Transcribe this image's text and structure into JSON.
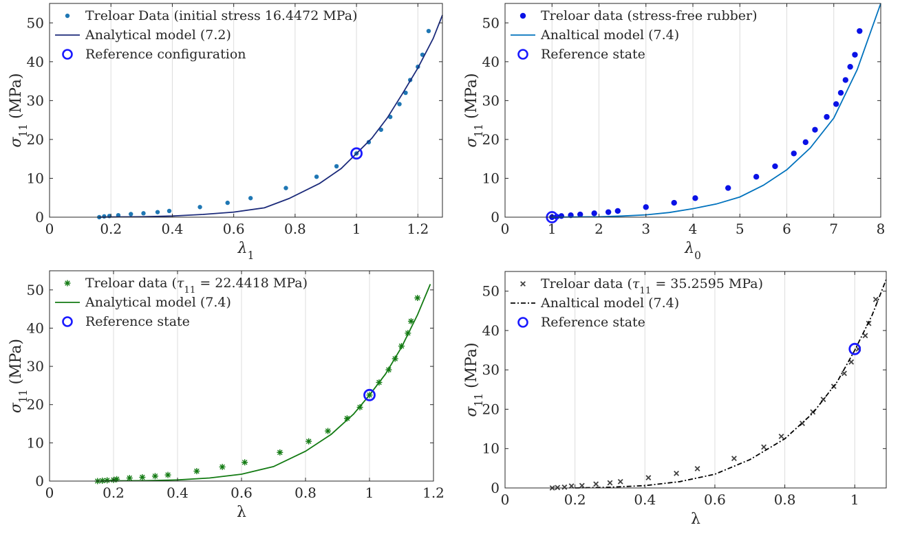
{
  "figure": {
    "colors": {
      "axis": "#262626",
      "grid": "#dcdcdc",
      "ref_circle": "#1a1aff"
    }
  },
  "chart_data": [
    {
      "type": "scatter",
      "xlabel": "λ1",
      "ylabel": "σ11 (MPa)",
      "xlim": [
        0,
        1.28
      ],
      "ylim": [
        0,
        55
      ],
      "xticks": [
        0,
        0.2,
        0.4,
        0.6,
        0.8,
        1,
        1.2
      ],
      "xtick_labels": [
        "0",
        "0.2",
        "0.4",
        "0.6",
        "0.8",
        "1",
        "1.2"
      ],
      "yticks": [
        0,
        10,
        20,
        30,
        40,
        50
      ],
      "grid": "vertical",
      "legend_position": "top-left",
      "series": [
        {
          "name": "Treloar Data (initial stress 16.4472 MPa)",
          "style": "dot",
          "color": "#1f77b4",
          "x": [
            0.162,
            0.178,
            0.195,
            0.224,
            0.265,
            0.306,
            0.352,
            0.39,
            0.49,
            0.58,
            0.655,
            0.77,
            0.87,
            0.935,
            1.0,
            1.04,
            1.08,
            1.11,
            1.14,
            1.16,
            1.175,
            1.2,
            1.215,
            1.235
          ],
          "y": [
            0.0,
            0.2,
            0.3,
            0.5,
            0.8,
            1.0,
            1.3,
            1.6,
            2.6,
            3.7,
            4.9,
            7.5,
            10.4,
            13.1,
            16.4,
            19.3,
            22.5,
            25.8,
            29.1,
            32.0,
            35.3,
            38.7,
            41.8,
            47.9
          ]
        },
        {
          "name": "Analytical model (7.2)",
          "style": "solid",
          "color": "#1b2a7a",
          "x": [
            0.162,
            0.2,
            0.3,
            0.4,
            0.5,
            0.6,
            0.7,
            0.78,
            0.88,
            0.95,
            1.0,
            1.05,
            1.1,
            1.15,
            1.2,
            1.25,
            1.28
          ],
          "y": [
            0.0,
            0.05,
            0.1,
            0.3,
            0.7,
            1.3,
            2.4,
            4.8,
            8.7,
            12.5,
            16.4,
            20.3,
            25.5,
            31.8,
            38.4,
            46.0,
            52.0
          ]
        }
      ],
      "reference": {
        "name": "Reference configuration",
        "x": 1.0,
        "y": 16.4
      }
    },
    {
      "type": "scatter",
      "xlabel": "λ0",
      "ylabel": "σ11 (MPa)",
      "xlim": [
        0,
        8
      ],
      "ylim": [
        0,
        55
      ],
      "xticks": [
        0,
        1,
        2,
        3,
        4,
        5,
        6,
        7,
        8
      ],
      "xtick_labels": [
        "0",
        "1",
        "2",
        "3",
        "4",
        "5",
        "6",
        "7",
        "8"
      ],
      "yticks": [
        0,
        10,
        20,
        30,
        40,
        50
      ],
      "grid": "vertical",
      "legend_position": "top-left",
      "series": [
        {
          "name": "Treloar data (stress-free rubber)",
          "style": "bigdot",
          "color": "#0a12e6",
          "x": [
            1.0,
            1.1,
            1.2,
            1.4,
            1.6,
            1.9,
            2.2,
            2.4,
            3.0,
            3.6,
            4.05,
            4.75,
            5.35,
            5.75,
            6.15,
            6.4,
            6.6,
            6.85,
            7.05,
            7.15,
            7.25,
            7.35,
            7.45,
            7.55
          ],
          "y": [
            0.0,
            0.1,
            0.3,
            0.5,
            0.7,
            1.0,
            1.3,
            1.6,
            2.6,
            3.7,
            4.9,
            7.5,
            10.4,
            13.1,
            16.4,
            19.3,
            22.5,
            25.8,
            29.1,
            32.0,
            35.3,
            38.7,
            41.8,
            47.9
          ]
        },
        {
          "name": "Analtical model (7.4)",
          "style": "solid",
          "color": "#0072bd",
          "x": [
            1.0,
            1.5,
            2.0,
            2.5,
            3.0,
            3.5,
            4.0,
            4.5,
            5.0,
            5.5,
            6.0,
            6.5,
            7.0,
            7.5,
            8.0
          ],
          "y": [
            0.0,
            0.05,
            0.1,
            0.3,
            0.6,
            1.2,
            2.2,
            3.4,
            5.2,
            8.2,
            12.2,
            17.8,
            25.5,
            38.0,
            55.0
          ]
        }
      ],
      "reference": {
        "name": "Reference state",
        "x": 1.0,
        "y": 0.0
      }
    },
    {
      "type": "scatter",
      "xlabel": "λ",
      "ylabel": "σ11 (MPa)",
      "xlim": [
        0,
        1.2
      ],
      "ylim": [
        0,
        55
      ],
      "xticks": [
        0,
        0.2,
        0.4,
        0.6,
        0.8,
        1,
        1.2
      ],
      "xtick_labels": [
        "0",
        "0.2",
        "0.4",
        "0.6",
        "0.8",
        "1",
        "1.2"
      ],
      "yticks": [
        0,
        10,
        20,
        30,
        40,
        50
      ],
      "grid": "vertical",
      "legend_position": "top-left",
      "series": [
        {
          "name": "Treloar data (τ11 = 22.4418 MPa)",
          "style": "star",
          "color": "#127a12",
          "x": [
            0.15,
            0.165,
            0.18,
            0.2,
            0.21,
            0.25,
            0.29,
            0.33,
            0.37,
            0.46,
            0.54,
            0.61,
            0.72,
            0.81,
            0.87,
            0.93,
            0.97,
            1.0,
            1.03,
            1.06,
            1.08,
            1.1,
            1.12,
            1.13,
            1.15
          ],
          "y": [
            0.0,
            0.1,
            0.2,
            0.3,
            0.5,
            0.8,
            1.0,
            1.3,
            1.6,
            2.6,
            3.7,
            4.9,
            7.5,
            10.4,
            13.1,
            16.4,
            19.3,
            22.5,
            25.8,
            29.1,
            32.0,
            35.3,
            38.7,
            41.8,
            47.9
          ]
        },
        {
          "name": "Analytical model (7.4)",
          "style": "solid",
          "color": "#127a12",
          "x": [
            0.15,
            0.2,
            0.3,
            0.4,
            0.5,
            0.6,
            0.7,
            0.8,
            0.88,
            0.95,
            1.0,
            1.05,
            1.1,
            1.15,
            1.19
          ],
          "y": [
            0.0,
            0.05,
            0.1,
            0.3,
            0.8,
            1.8,
            3.8,
            7.8,
            12.2,
            17.5,
            22.5,
            28.0,
            35.0,
            43.5,
            51.5
          ]
        }
      ],
      "reference": {
        "name": "Reference state",
        "x": 1.0,
        "y": 22.5
      }
    },
    {
      "type": "scatter",
      "xlabel": "λ",
      "ylabel": "σ11 (MPa)",
      "xlim": [
        0,
        1.09
      ],
      "ylim": [
        0,
        55
      ],
      "xticks": [
        0,
        0.2,
        0.4,
        0.6,
        0.8,
        1
      ],
      "xtick_labels": [
        "0",
        "0.2",
        "0.4",
        "0.6",
        "0.8",
        "1"
      ],
      "yticks": [
        0,
        10,
        20,
        30,
        40,
        50
      ],
      "grid": "vertical",
      "legend_position": "top-left",
      "series": [
        {
          "name": "Treloar data (τ11 = 35.2595 MPa)",
          "style": "cross",
          "color": "#404040",
          "x": [
            0.135,
            0.15,
            0.17,
            0.19,
            0.22,
            0.26,
            0.3,
            0.33,
            0.41,
            0.49,
            0.55,
            0.655,
            0.74,
            0.79,
            0.85,
            0.88,
            0.91,
            0.94,
            0.97,
            0.99,
            1.01,
            1.03,
            1.04,
            1.06
          ],
          "y": [
            0.0,
            0.1,
            0.2,
            0.5,
            0.6,
            1.0,
            1.3,
            1.6,
            2.6,
            3.7,
            4.9,
            7.5,
            10.4,
            13.1,
            16.4,
            19.3,
            22.5,
            25.8,
            29.1,
            32.0,
            35.3,
            38.7,
            41.8,
            47.9
          ]
        },
        {
          "name": "Analtical model (7.4)",
          "style": "dashdot",
          "color": "#000000",
          "x": [
            0.2,
            0.3,
            0.4,
            0.5,
            0.6,
            0.7,
            0.8,
            0.88,
            0.95,
            1.0,
            1.05,
            1.09
          ],
          "y": [
            0.0,
            0.2,
            0.6,
            1.6,
            3.5,
            7.2,
            12.5,
            19.0,
            27.0,
            35.0,
            44.0,
            53.0
          ]
        }
      ],
      "reference": {
        "name": "Reference state",
        "x": 1.0,
        "y": 35.3
      }
    }
  ]
}
